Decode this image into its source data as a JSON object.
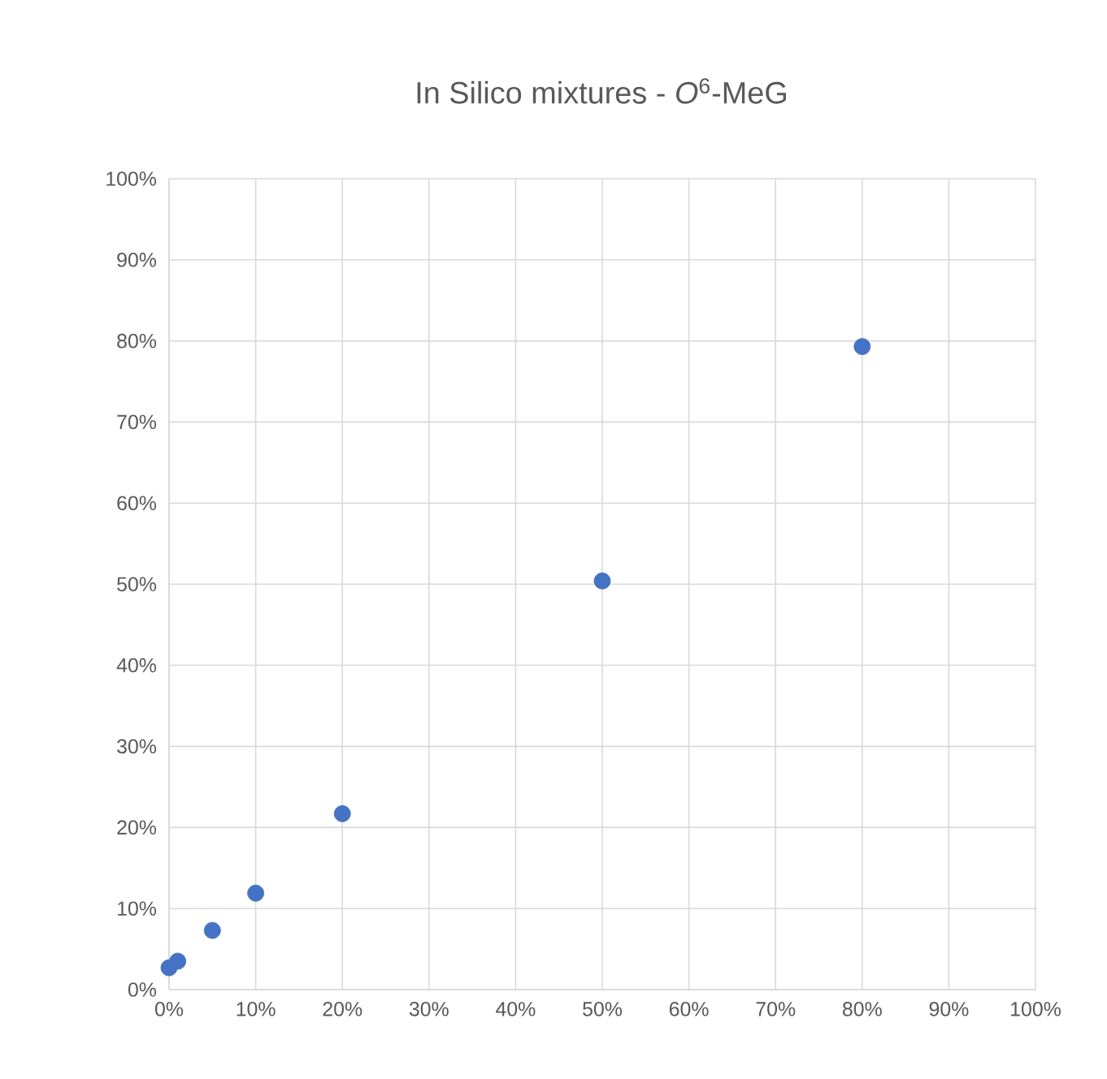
{
  "chart_data": {
    "type": "scatter",
    "title": "In Silico mixtures - *O*$^{6}$-MeG",
    "x": [
      0,
      1,
      5,
      10,
      20,
      50,
      80
    ],
    "values": [
      2.7,
      3.5,
      7.3,
      11.9,
      21.7,
      50.4,
      79.3
    ],
    "color": "#4472c4",
    "marker": "circle",
    "grid": true,
    "xlim": [
      0,
      100
    ],
    "ylim": [
      0,
      100
    ],
    "xticks": [
      {
        "value": 0,
        "label": "0%"
      },
      {
        "value": 10,
        "label": "10%"
      },
      {
        "value": 20,
        "label": "20%"
      },
      {
        "value": 30,
        "label": "30%"
      },
      {
        "value": 40,
        "label": "40%"
      },
      {
        "value": 50,
        "label": "50%"
      },
      {
        "value": 60,
        "label": "60%"
      },
      {
        "value": 70,
        "label": "70%"
      },
      {
        "value": 80,
        "label": "80%"
      },
      {
        "value": 90,
        "label": "90%"
      },
      {
        "value": 100,
        "label": "100%"
      }
    ],
    "yticks": [
      {
        "value": 0,
        "label": "0%"
      },
      {
        "value": 10,
        "label": "10%"
      },
      {
        "value": 20,
        "label": "20%"
      },
      {
        "value": 30,
        "label": "30%"
      },
      {
        "value": 40,
        "label": "40%"
      },
      {
        "value": 50,
        "label": "50%"
      },
      {
        "value": 60,
        "label": "60%"
      },
      {
        "value": 70,
        "label": "70%"
      },
      {
        "value": 80,
        "label": "80%"
      },
      {
        "value": 90,
        "label": "90%"
      },
      {
        "value": 100,
        "label": "100%"
      }
    ]
  }
}
